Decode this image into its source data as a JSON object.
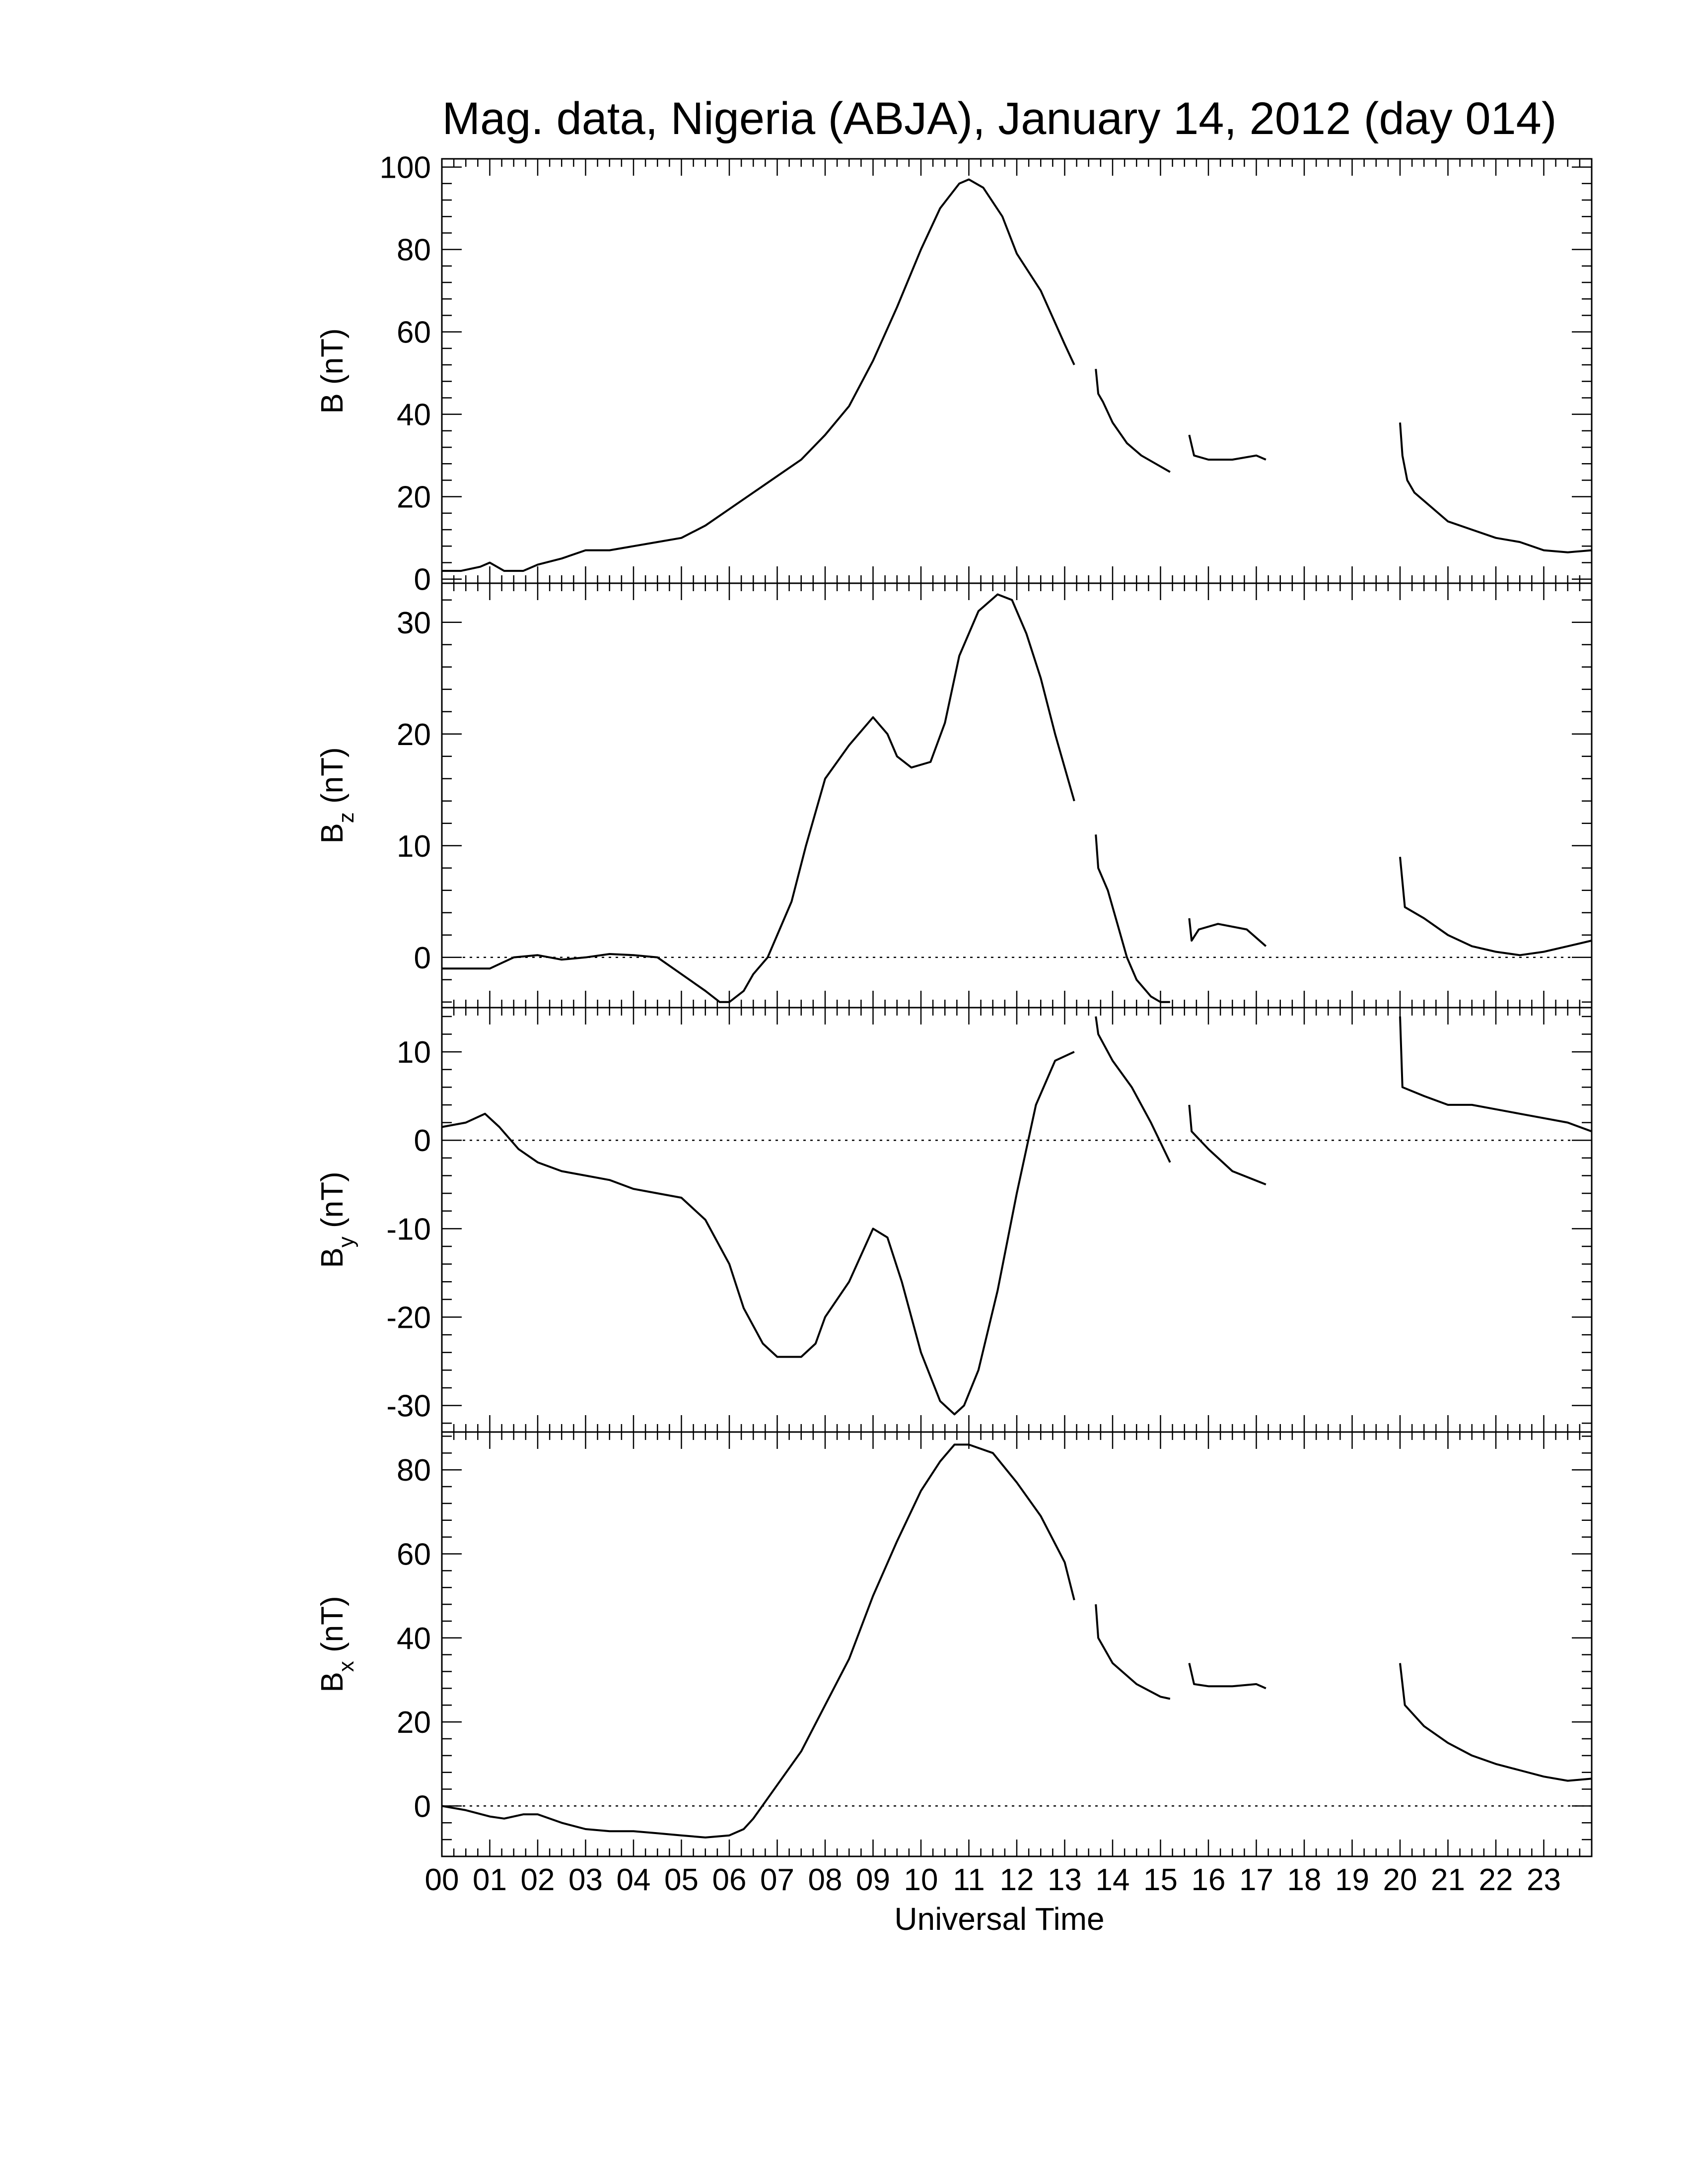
{
  "chart_data": {
    "type": "line",
    "title": "Mag. data, Nigeria (ABJA), January 14, 2012 (day 014)",
    "xlabel": "Universal Time",
    "xlim": [
      0,
      24
    ],
    "x_tick_labels": [
      "00",
      "01",
      "02",
      "03",
      "04",
      "05",
      "06",
      "07",
      "08",
      "09",
      "10",
      "11",
      "12",
      "13",
      "14",
      "15",
      "16",
      "17",
      "18",
      "19",
      "20",
      "21",
      "22",
      "23"
    ],
    "panels": [
      {
        "id": "B",
        "ylabel": "B (nT)",
        "ylabel_main": "B",
        "ylabel_sub": "",
        "ylabel_unit": " (nT)",
        "ylim": [
          -1,
          102
        ],
        "yticks": [
          0,
          20,
          40,
          60,
          80,
          100
        ],
        "zero_line": false,
        "segments": [
          [
            [
              0,
              2
            ],
            [
              0.4,
              2
            ],
            [
              0.8,
              3
            ],
            [
              1.0,
              4
            ],
            [
              1.3,
              2
            ],
            [
              1.7,
              2
            ],
            [
              2.0,
              3.5
            ],
            [
              2.5,
              5
            ],
            [
              3.0,
              7
            ],
            [
              3.5,
              7
            ],
            [
              4.0,
              8
            ],
            [
              4.5,
              9
            ],
            [
              5.0,
              10
            ],
            [
              5.5,
              13
            ],
            [
              6.0,
              17
            ],
            [
              6.5,
              21
            ],
            [
              7.0,
              25
            ],
            [
              7.5,
              29
            ],
            [
              8.0,
              35
            ],
            [
              8.5,
              42
            ],
            [
              9.0,
              53
            ],
            [
              9.5,
              66
            ],
            [
              10.0,
              80
            ],
            [
              10.4,
              90
            ],
            [
              10.8,
              96
            ],
            [
              11.0,
              97
            ],
            [
              11.3,
              95
            ],
            [
              11.7,
              88
            ],
            [
              12.0,
              79
            ],
            [
              12.5,
              70
            ],
            [
              13.0,
              57
            ],
            [
              13.2,
              52
            ]
          ],
          [
            [
              13.65,
              51
            ],
            [
              13.7,
              45
            ],
            [
              13.8,
              43
            ],
            [
              14.0,
              38
            ],
            [
              14.3,
              33
            ],
            [
              14.6,
              30
            ],
            [
              14.9,
              28
            ],
            [
              15.2,
              26
            ]
          ],
          [
            [
              15.6,
              35
            ],
            [
              15.7,
              30
            ],
            [
              16.0,
              29
            ],
            [
              16.5,
              29
            ],
            [
              17.0,
              30
            ],
            [
              17.2,
              29
            ]
          ],
          [
            [
              20.0,
              38
            ],
            [
              20.05,
              30
            ],
            [
              20.15,
              24
            ],
            [
              20.3,
              21
            ],
            [
              20.7,
              17
            ],
            [
              21.0,
              14
            ],
            [
              21.5,
              12
            ],
            [
              22.0,
              10
            ],
            [
              22.5,
              9
            ],
            [
              23.0,
              7
            ],
            [
              23.5,
              6.5
            ],
            [
              24.0,
              7
            ]
          ]
        ]
      },
      {
        "id": "Bz",
        "ylabel": "Bz (nT)",
        "ylabel_main": "B",
        "ylabel_sub": "z",
        "ylabel_unit": " (nT)",
        "ylim": [
          -4.5,
          33.5
        ],
        "yticks": [
          0,
          10,
          20,
          30
        ],
        "zero_line": true,
        "segments": [
          [
            [
              0,
              -1
            ],
            [
              0.5,
              -1
            ],
            [
              1.0,
              -1
            ],
            [
              1.5,
              0
            ],
            [
              2.0,
              0.2
            ],
            [
              2.5,
              -0.2
            ],
            [
              3.0,
              0
            ],
            [
              3.5,
              0.3
            ],
            [
              4.0,
              0.2
            ],
            [
              4.5,
              0
            ],
            [
              5.0,
              -1.5
            ],
            [
              5.5,
              -3
            ],
            [
              5.8,
              -4
            ],
            [
              6.0,
              -4
            ],
            [
              6.3,
              -3
            ],
            [
              6.5,
              -1.5
            ],
            [
              6.8,
              0
            ],
            [
              7.0,
              2
            ],
            [
              7.3,
              5
            ],
            [
              7.6,
              10
            ],
            [
              8.0,
              16
            ],
            [
              8.5,
              19
            ],
            [
              9.0,
              21.5
            ],
            [
              9.3,
              20
            ],
            [
              9.5,
              18
            ],
            [
              9.8,
              17
            ],
            [
              10.2,
              17.5
            ],
            [
              10.5,
              21
            ],
            [
              10.8,
              27
            ],
            [
              11.2,
              31
            ],
            [
              11.6,
              32.5
            ],
            [
              11.9,
              32
            ],
            [
              12.2,
              29
            ],
            [
              12.5,
              25
            ],
            [
              12.8,
              20
            ],
            [
              13.0,
              17
            ],
            [
              13.2,
              14
            ]
          ],
          [
            [
              13.65,
              11
            ],
            [
              13.7,
              8
            ],
            [
              13.9,
              6
            ],
            [
              14.1,
              3
            ],
            [
              14.3,
              0
            ],
            [
              14.5,
              -2
            ],
            [
              14.8,
              -3.5
            ],
            [
              15.0,
              -4
            ],
            [
              15.2,
              -4
            ]
          ],
          [
            [
              15.6,
              3.5
            ],
            [
              15.65,
              1.5
            ],
            [
              15.8,
              2.5
            ],
            [
              16.2,
              3
            ],
            [
              16.8,
              2.5
            ],
            [
              17.2,
              1
            ]
          ],
          [
            [
              20.0,
              9
            ],
            [
              20.1,
              4.5
            ],
            [
              20.5,
              3.5
            ],
            [
              21.0,
              2
            ],
            [
              21.5,
              1
            ],
            [
              22.0,
              0.5
            ],
            [
              22.5,
              0.2
            ],
            [
              23.0,
              0.5
            ],
            [
              23.5,
              1
            ],
            [
              24.0,
              1.5
            ]
          ]
        ]
      },
      {
        "id": "By",
        "ylabel": "By (nT)",
        "ylabel_main": "B",
        "ylabel_sub": "y",
        "ylabel_unit": " (nT)",
        "ylim": [
          -33,
          15
        ],
        "yticks": [
          -30,
          -20,
          -10,
          0,
          10
        ],
        "zero_line": true,
        "segments": [
          [
            [
              0,
              1.5
            ],
            [
              0.5,
              2
            ],
            [
              0.9,
              3
            ],
            [
              1.2,
              1.5
            ],
            [
              1.6,
              -1
            ],
            [
              2.0,
              -2.5
            ],
            [
              2.5,
              -3.5
            ],
            [
              3.0,
              -4
            ],
            [
              3.5,
              -4.5
            ],
            [
              4.0,
              -5.5
            ],
            [
              4.5,
              -6
            ],
            [
              5.0,
              -6.5
            ],
            [
              5.5,
              -9
            ],
            [
              6.0,
              -14
            ],
            [
              6.3,
              -19
            ],
            [
              6.7,
              -23
            ],
            [
              7.0,
              -24.5
            ],
            [
              7.5,
              -24.5
            ],
            [
              7.8,
              -23
            ],
            [
              8.0,
              -20
            ],
            [
              8.5,
              -16
            ],
            [
              9.0,
              -10
            ],
            [
              9.3,
              -11
            ],
            [
              9.6,
              -16
            ],
            [
              10.0,
              -24
            ],
            [
              10.4,
              -29.5
            ],
            [
              10.7,
              -31
            ],
            [
              10.9,
              -30
            ],
            [
              11.2,
              -26
            ],
            [
              11.6,
              -17
            ],
            [
              12.0,
              -6
            ],
            [
              12.4,
              4
            ],
            [
              12.8,
              9
            ],
            [
              13.2,
              10
            ]
          ],
          [
            [
              13.65,
              14
            ],
            [
              13.7,
              12
            ],
            [
              14.0,
              9
            ],
            [
              14.4,
              6
            ],
            [
              14.8,
              2
            ],
            [
              15.2,
              -2.5
            ]
          ],
          [
            [
              15.6,
              4
            ],
            [
              15.65,
              1
            ],
            [
              16.0,
              -1
            ],
            [
              16.5,
              -3.5
            ],
            [
              17.2,
              -5
            ]
          ],
          [
            [
              20.0,
              14
            ],
            [
              20.05,
              6
            ],
            [
              20.5,
              5
            ],
            [
              21.0,
              4
            ],
            [
              21.5,
              4
            ],
            [
              22.0,
              3.5
            ],
            [
              22.5,
              3
            ],
            [
              23.0,
              2.5
            ],
            [
              23.5,
              2
            ],
            [
              24.0,
              1
            ]
          ]
        ]
      },
      {
        "id": "Bx",
        "ylabel": "Bx (nT)",
        "ylabel_main": "B",
        "ylabel_sub": "x",
        "ylabel_unit": " (nT)",
        "ylim": [
          -12,
          89
        ],
        "yticks": [
          0,
          20,
          40,
          60,
          80
        ],
        "zero_line": true,
        "segments": [
          [
            [
              0,
              0
            ],
            [
              0.5,
              -1
            ],
            [
              1.0,
              -2.5
            ],
            [
              1.3,
              -3
            ],
            [
              1.7,
              -2
            ],
            [
              2.0,
              -2
            ],
            [
              2.5,
              -4
            ],
            [
              3.0,
              -5.5
            ],
            [
              3.5,
              -6
            ],
            [
              4.0,
              -6
            ],
            [
              4.5,
              -6.5
            ],
            [
              5.0,
              -7
            ],
            [
              5.5,
              -7.5
            ],
            [
              6.0,
              -7
            ],
            [
              6.3,
              -5.5
            ],
            [
              6.5,
              -3
            ],
            [
              7.0,
              5
            ],
            [
              7.5,
              13
            ],
            [
              8.0,
              24
            ],
            [
              8.5,
              35
            ],
            [
              9.0,
              50
            ],
            [
              9.5,
              63
            ],
            [
              10.0,
              75
            ],
            [
              10.4,
              82
            ],
            [
              10.7,
              86
            ],
            [
              11.0,
              86
            ],
            [
              11.5,
              84
            ],
            [
              12.0,
              77
            ],
            [
              12.5,
              69
            ],
            [
              13.0,
              58
            ],
            [
              13.2,
              49
            ]
          ],
          [
            [
              13.65,
              48
            ],
            [
              13.7,
              40
            ],
            [
              14.0,
              34
            ],
            [
              14.5,
              29
            ],
            [
              15.0,
              26
            ],
            [
              15.2,
              25.5
            ]
          ],
          [
            [
              15.6,
              34
            ],
            [
              15.7,
              29
            ],
            [
              16.0,
              28.5
            ],
            [
              16.5,
              28.5
            ],
            [
              17.0,
              29
            ],
            [
              17.2,
              28
            ]
          ],
          [
            [
              20.0,
              34
            ],
            [
              20.1,
              24
            ],
            [
              20.5,
              19
            ],
            [
              21.0,
              15
            ],
            [
              21.5,
              12
            ],
            [
              22.0,
              10
            ],
            [
              22.5,
              8.5
            ],
            [
              23.0,
              7
            ],
            [
              23.5,
              6
            ],
            [
              24.0,
              6.5
            ]
          ]
        ]
      }
    ]
  }
}
